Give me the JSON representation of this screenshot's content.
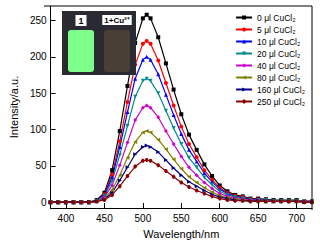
{
  "chart_data": {
    "type": "line",
    "x_label": "Wavelength/nm",
    "y_label": "Intensity/a.u.",
    "annotations": [
      "1",
      "1+Cu²⁺"
    ],
    "x": [
      380,
      390,
      400,
      410,
      420,
      430,
      440,
      450,
      460,
      470,
      480,
      490,
      500,
      505,
      510,
      520,
      530,
      540,
      550,
      560,
      570,
      580,
      590,
      600,
      610,
      620,
      630,
      640,
      650,
      660,
      670,
      680,
      690,
      700,
      710,
      720
    ],
    "xlim": [
      380,
      720
    ],
    "xticks": [
      400,
      450,
      500,
      550,
      600,
      650,
      700
    ],
    "ylim": [
      -8,
      270
    ],
    "yticks": [
      0,
      50,
      100,
      150,
      200,
      250
    ],
    "grid": false,
    "legend": "upper right",
    "series": [
      {
        "name": "0 μl CuCl₂",
        "color": "#000000",
        "marker": "rect",
        "values": [
          0,
          0,
          0,
          0,
          0,
          0,
          3,
          13,
          44,
          98,
          160,
          219,
          253,
          258,
          253,
          227,
          191,
          155,
          121,
          93,
          72,
          52,
          36,
          23,
          15,
          10,
          8,
          5,
          5,
          4,
          3,
          3,
          3,
          3,
          1,
          1
        ]
      },
      {
        "name": "5 μl CuCl₂",
        "color": "#ff0000",
        "marker": "circle",
        "values": [
          0,
          0,
          0,
          0,
          0,
          0,
          2,
          11,
          38,
          84,
          138,
          189,
          218,
          222,
          218,
          195,
          164,
          133,
          104,
          80,
          62,
          44,
          31,
          20,
          13,
          9,
          7,
          4,
          4,
          3,
          2,
          2,
          2,
          2,
          1,
          1
        ]
      },
      {
        "name": "10 μl CuCl₂",
        "color": "#0000ff",
        "marker": "triangle",
        "values": [
          0,
          0,
          0,
          0,
          0,
          0,
          2,
          10,
          34,
          76,
          124,
          170,
          196,
          200,
          196,
          176,
          148,
          120,
          94,
          72,
          56,
          40,
          28,
          18,
          12,
          8,
          6,
          4,
          4,
          3,
          2,
          2,
          2,
          2,
          1,
          1
        ]
      },
      {
        "name": "20 μl CuCl₂",
        "color": "#008b8b",
        "marker": "triangle-down",
        "values": [
          0,
          0,
          0,
          0,
          0,
          0,
          2,
          9,
          29,
          65,
          105,
          145,
          167,
          170,
          167,
          150,
          126,
          102,
          80,
          61,
          48,
          34,
          24,
          15,
          10,
          7,
          5,
          3,
          3,
          3,
          2,
          2,
          2,
          2,
          1,
          1
        ]
      },
      {
        "name": "40 μl CuCl₂",
        "color": "#cc00cc",
        "marker": "diamond",
        "values": [
          0,
          0,
          0,
          0,
          0,
          0,
          1,
          7,
          23,
          51,
          82,
          113,
          130,
          133,
          130,
          117,
          98,
          80,
          63,
          48,
          37,
          27,
          19,
          12,
          8,
          5,
          4,
          3,
          3,
          2,
          1,
          1,
          1,
          1,
          1,
          1
        ]
      },
      {
        "name": "80 μl CuCl₂",
        "color": "#808000",
        "marker": "triangle-left",
        "values": [
          0,
          0,
          0,
          0,
          0,
          0,
          1,
          5,
          17,
          37,
          61,
          83,
          96,
          98,
          96,
          86,
          73,
          59,
          46,
          35,
          27,
          20,
          14,
          9,
          6,
          4,
          3,
          2,
          2,
          1,
          1,
          1,
          1,
          1,
          0,
          0
        ]
      },
      {
        "name": "160 μl CuCl₂",
        "color": "#000080",
        "marker": "triangle-right",
        "values": [
          0,
          0,
          0,
          0,
          0,
          0,
          1,
          4,
          13,
          30,
          48,
          66,
          76,
          78,
          76,
          69,
          58,
          47,
          37,
          28,
          22,
          16,
          11,
          7,
          5,
          3,
          2,
          2,
          2,
          1,
          1,
          1,
          1,
          1,
          0,
          0
        ]
      },
      {
        "name": "250 μl CuCl₂",
        "color": "#8b0000",
        "marker": "hexagon",
        "values": [
          0,
          0,
          0,
          0,
          0,
          0,
          1,
          3,
          10,
          22,
          36,
          49,
          57,
          58,
          57,
          51,
          43,
          35,
          27,
          21,
          16,
          12,
          8,
          5,
          3,
          2,
          2,
          1,
          1,
          1,
          1,
          1,
          1,
          1,
          0,
          0
        ]
      }
    ]
  }
}
